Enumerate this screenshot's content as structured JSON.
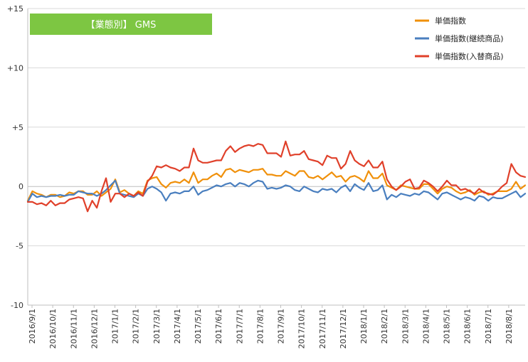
{
  "chart_data": {
    "type": "line",
    "title": "【業態別】 GMS",
    "title_bg": "#7dc642",
    "xlabel": "",
    "ylabel": "",
    "ylim": [
      -10,
      15
    ],
    "yticks": [
      15,
      10,
      5,
      0,
      -5,
      -10
    ],
    "ytick_labels": [
      "+15",
      "+10",
      "+5",
      "0",
      "-5",
      "-10"
    ],
    "grid": "horizontal",
    "legend": "top-right",
    "x_tick_labels": [
      "2016/9/1",
      "2016/10/1",
      "2016/11/1",
      "2016/12/1",
      "2017/1/1",
      "2017/2/1",
      "2017/3/1",
      "2017/4/1",
      "2017/5/1",
      "2017/6/1",
      "2017/7/1",
      "2017/8/1",
      "2017/9/1",
      "2017/10/1",
      "2017/11/1",
      "2017/12/1",
      "2018/1/1",
      "2018/2/1",
      "2018/3/1",
      "2018/4/1",
      "2018/5/1",
      "2018/6/1",
      "2018/7/1",
      "2018/8/1"
    ],
    "series": [
      {
        "name": "単価指数",
        "color": "#f0900a",
        "values": [
          -1.2,
          -0.4,
          -0.6,
          -0.7,
          -0.9,
          -0.7,
          -0.7,
          -0.9,
          -0.8,
          -0.5,
          -0.6,
          -0.4,
          -0.4,
          -0.7,
          -0.7,
          -0.4,
          -0.8,
          -0.5,
          -0.2,
          0.6,
          -0.5,
          -0.3,
          -0.6,
          -0.8,
          -0.4,
          -0.6,
          0.5,
          0.7,
          0.8,
          0.2,
          -0.1,
          0.3,
          0.4,
          0.3,
          0.6,
          0.3,
          1.2,
          0.3,
          0.6,
          0.6,
          0.9,
          1.1,
          0.8,
          1.4,
          1.5,
          1.2,
          1.4,
          1.3,
          1.2,
          1.4,
          1.4,
          1.5,
          1.0,
          1.0,
          0.9,
          0.9,
          1.3,
          1.1,
          0.9,
          1.3,
          1.3,
          0.8,
          0.7,
          0.9,
          0.6,
          0.9,
          1.2,
          0.8,
          0.9,
          0.4,
          0.8,
          0.9,
          0.7,
          0.4,
          1.3,
          0.7,
          0.7,
          1.1,
          0.1,
          -0.1,
          -0.3,
          0.1,
          0.0,
          -0.1,
          -0.2,
          -0.2,
          0.2,
          0.2,
          -0.2,
          -0.6,
          -0.2,
          0.0,
          -0.1,
          -0.4,
          -0.6,
          -0.5,
          -0.3,
          -0.7,
          -0.5,
          -0.4,
          -0.7,
          -0.6,
          -0.4,
          -0.4,
          -0.4,
          -0.2,
          0.4,
          -0.2,
          0.1
        ]
      },
      {
        "name": "単価指数(継続商品)",
        "color": "#4a7fbf",
        "values": [
          -1.3,
          -0.6,
          -0.9,
          -0.8,
          -0.9,
          -0.8,
          -0.8,
          -0.7,
          -0.8,
          -0.7,
          -0.7,
          -0.4,
          -0.5,
          -0.6,
          -0.6,
          -0.8,
          -0.6,
          -0.3,
          0.1,
          0.5,
          -0.6,
          -0.7,
          -0.8,
          -0.9,
          -0.6,
          -0.8,
          -0.2,
          0.0,
          -0.2,
          -0.5,
          -1.2,
          -0.6,
          -0.5,
          -0.6,
          -0.4,
          -0.4,
          0.0,
          -0.7,
          -0.4,
          -0.3,
          -0.1,
          0.1,
          0.0,
          0.2,
          0.3,
          0.0,
          0.3,
          0.2,
          0.0,
          0.3,
          0.5,
          0.4,
          -0.2,
          -0.1,
          -0.2,
          -0.1,
          0.1,
          0.0,
          -0.3,
          -0.4,
          0.0,
          -0.2,
          -0.4,
          -0.5,
          -0.2,
          -0.3,
          -0.2,
          -0.5,
          -0.1,
          0.1,
          -0.4,
          0.2,
          -0.1,
          -0.3,
          0.3,
          -0.4,
          -0.3,
          0.1,
          -1.1,
          -0.7,
          -0.9,
          -0.6,
          -0.7,
          -0.8,
          -0.6,
          -0.7,
          -0.4,
          -0.5,
          -0.8,
          -1.1,
          -0.6,
          -0.5,
          -0.7,
          -0.9,
          -1.1,
          -0.9,
          -1.0,
          -1.2,
          -0.8,
          -0.9,
          -1.2,
          -0.9,
          -1.0,
          -1.0,
          -0.8,
          -0.6,
          -0.4,
          -0.9,
          -0.6
        ]
      },
      {
        "name": "単価指数(入替商品)",
        "color": "#e0402a",
        "values": [
          -1.3,
          -1.3,
          -1.5,
          -1.4,
          -1.6,
          -1.2,
          -1.6,
          -1.4,
          -1.4,
          -1.1,
          -1.0,
          -0.9,
          -1.0,
          -2.1,
          -1.2,
          -1.8,
          -0.4,
          0.7,
          -1.3,
          -0.6,
          -0.6,
          -0.9,
          -0.6,
          -0.8,
          -0.5,
          -0.8,
          0.4,
          0.9,
          1.7,
          1.6,
          1.8,
          1.6,
          1.5,
          1.3,
          1.6,
          1.6,
          3.2,
          2.2,
          2.0,
          2.0,
          2.1,
          2.2,
          2.2,
          3.0,
          3.4,
          2.9,
          3.2,
          3.4,
          3.5,
          3.4,
          3.6,
          3.5,
          2.8,
          2.8,
          2.8,
          2.5,
          3.8,
          2.6,
          2.7,
          2.7,
          3.0,
          2.3,
          2.2,
          2.1,
          1.8,
          2.6,
          2.4,
          2.4,
          1.5,
          1.9,
          3.0,
          2.2,
          1.9,
          1.7,
          2.2,
          1.6,
          1.6,
          2.1,
          0.6,
          0.0,
          -0.3,
          0.0,
          0.4,
          0.6,
          -0.2,
          -0.1,
          0.5,
          0.3,
          0.0,
          -0.4,
          0.0,
          0.5,
          0.1,
          0.1,
          -0.3,
          -0.2,
          -0.4,
          -0.6,
          -0.2,
          -0.5,
          -0.6,
          -0.7,
          -0.4,
          0.0,
          0.3,
          1.9,
          1.2,
          0.9,
          0.8
        ]
      }
    ]
  }
}
